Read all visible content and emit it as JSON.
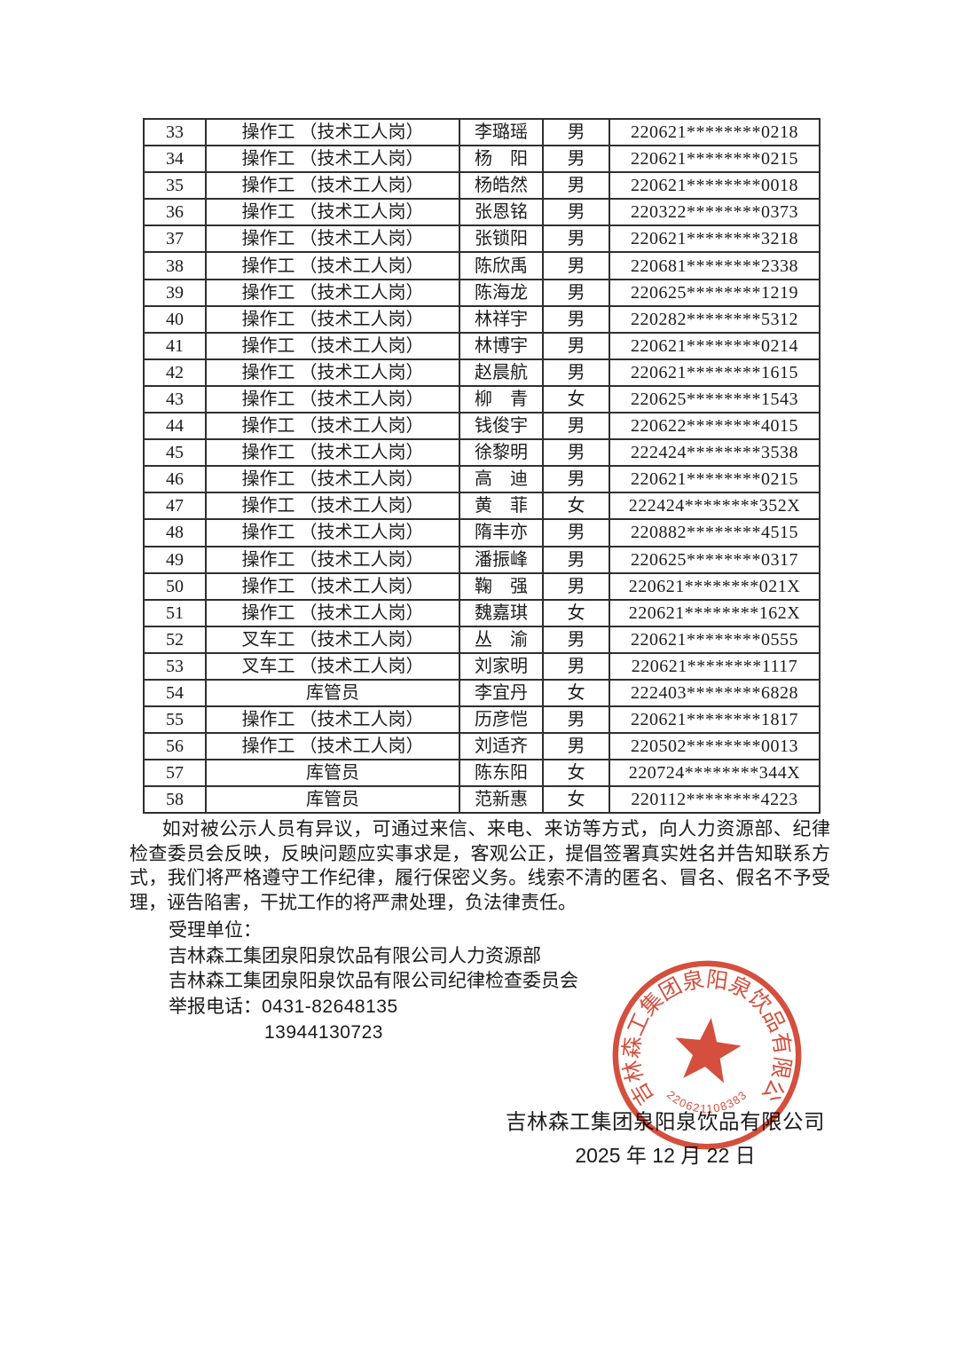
{
  "table": {
    "rows": [
      {
        "no": "33",
        "position": "操作工 （技术工人岗）",
        "name": "李璐瑶",
        "gender": "男",
        "id_number": "220621********0218"
      },
      {
        "no": "34",
        "position": "操作工 （技术工人岗）",
        "name": "杨　阳",
        "gender": "男",
        "id_number": "220621********0215"
      },
      {
        "no": "35",
        "position": "操作工 （技术工人岗）",
        "name": "杨皓然",
        "gender": "男",
        "id_number": "220621********0018"
      },
      {
        "no": "36",
        "position": "操作工 （技术工人岗）",
        "name": "张恩铭",
        "gender": "男",
        "id_number": "220322********0373"
      },
      {
        "no": "37",
        "position": "操作工 （技术工人岗）",
        "name": "张锁阳",
        "gender": "男",
        "id_number": "220621********3218"
      },
      {
        "no": "38",
        "position": "操作工 （技术工人岗）",
        "name": "陈欣禹",
        "gender": "男",
        "id_number": "220681********2338"
      },
      {
        "no": "39",
        "position": "操作工 （技术工人岗）",
        "name": "陈海龙",
        "gender": "男",
        "id_number": "220625********1219"
      },
      {
        "no": "40",
        "position": "操作工 （技术工人岗）",
        "name": "林祥宇",
        "gender": "男",
        "id_number": "220282********5312"
      },
      {
        "no": "41",
        "position": "操作工 （技术工人岗）",
        "name": "林博宇",
        "gender": "男",
        "id_number": "220621********0214"
      },
      {
        "no": "42",
        "position": "操作工 （技术工人岗）",
        "name": "赵晨航",
        "gender": "男",
        "id_number": "220621********1615"
      },
      {
        "no": "43",
        "position": "操作工 （技术工人岗）",
        "name": "柳　青",
        "gender": "女",
        "id_number": "220625********1543"
      },
      {
        "no": "44",
        "position": "操作工 （技术工人岗）",
        "name": "钱俊宇",
        "gender": "男",
        "id_number": "220622********4015"
      },
      {
        "no": "45",
        "position": "操作工 （技术工人岗）",
        "name": "徐黎明",
        "gender": "男",
        "id_number": "222424********3538"
      },
      {
        "no": "46",
        "position": "操作工 （技术工人岗）",
        "name": "高　迪",
        "gender": "男",
        "id_number": "220621********0215"
      },
      {
        "no": "47",
        "position": "操作工 （技术工人岗）",
        "name": "黄　菲",
        "gender": "女",
        "id_number": "222424********352X"
      },
      {
        "no": "48",
        "position": "操作工 （技术工人岗）",
        "name": "隋丰亦",
        "gender": "男",
        "id_number": "220882********4515"
      },
      {
        "no": "49",
        "position": "操作工 （技术工人岗）",
        "name": "潘振峰",
        "gender": "男",
        "id_number": "220625********0317"
      },
      {
        "no": "50",
        "position": "操作工 （技术工人岗）",
        "name": "鞠　强",
        "gender": "男",
        "id_number": "220621********021X"
      },
      {
        "no": "51",
        "position": "操作工 （技术工人岗）",
        "name": "魏嘉琪",
        "gender": "女",
        "id_number": "220621********162X"
      },
      {
        "no": "52",
        "position": "叉车工 （技术工人岗）",
        "name": "丛　渝",
        "gender": "男",
        "id_number": "220621********0555"
      },
      {
        "no": "53",
        "position": "叉车工 （技术工人岗）",
        "name": "刘家明",
        "gender": "男",
        "id_number": "220621********1117"
      },
      {
        "no": "54",
        "position": "库管员",
        "name": "李宜丹",
        "gender": "女",
        "id_number": "222403********6828"
      },
      {
        "no": "55",
        "position": "操作工 （技术工人岗）",
        "name": "历彦恺",
        "gender": "男",
        "id_number": "220621********1817"
      },
      {
        "no": "56",
        "position": "操作工 （技术工人岗）",
        "name": "刘适齐",
        "gender": "男",
        "id_number": "220502********0013"
      },
      {
        "no": "57",
        "position": "库管员",
        "name": "陈东阳",
        "gender": "女",
        "id_number": "220724********344X"
      },
      {
        "no": "58",
        "position": "库管员",
        "name": "范新惠",
        "gender": "女",
        "id_number": "220112********4223"
      }
    ]
  },
  "notice": {
    "text": "如对被公示人员有异议，可通过来信、来电、来访等方式，向人力资源部、纪律检查委员会反映，反映问题应实事求是，客观公正，提倡签署真实姓名并告知联系方式，我们将严格遵守工作纪律，履行保密义务。线索不清的匿名、冒名、假名不予受理，诬告陷害，干扰工作的将严肃处理，负法律责任。"
  },
  "contact": {
    "heading": "受理单位：",
    "org1": "吉林森工集团泉阳泉饮品有限公司人力资源部",
    "org2": "吉林森工集团泉阳泉饮品有限公司纪律检查委员会",
    "hotline_label": "举报电话：",
    "hotline_phone": "0431-82648135",
    "hotline_mobile": "13944130723"
  },
  "seal": {
    "ring_text": "吉林森工集团泉阳泉饮品有限公司",
    "serial_number": "220621108383",
    "color": "#d03c27"
  },
  "signoff": {
    "company": "吉林森工集团泉阳泉饮品有限公司",
    "date": "2025 年 12 月 22 日"
  }
}
